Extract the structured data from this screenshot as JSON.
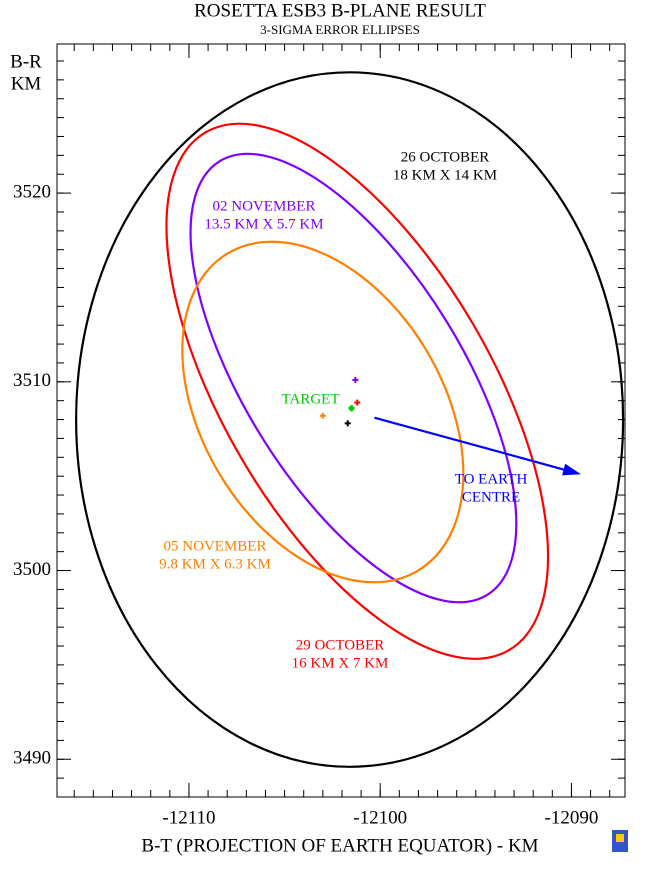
{
  "chart_data": {
    "type": "ellipse-plot",
    "title": "ROSETTA ESB3 B-PLANE RESULT",
    "subtitle": "3-SIGMA ERROR ELLIPSES",
    "ylabel": [
      "B-R",
      "KM"
    ],
    "xlabel": "B-T (PROJECTION OF EARTH EQUATOR) - KM",
    "xlim": [
      -12116.9,
      -12087.2
    ],
    "xticks": [
      -12110,
      -12100,
      -12090
    ],
    "ylim": [
      3488.0,
      3527.9
    ],
    "yticks": [
      3490,
      3500,
      3510,
      3520
    ],
    "minor_tick_step": 1,
    "ellipses": [
      {
        "name": [
          "26 OCTOBER",
          "18 KM X 14 KM"
        ],
        "color": "#000000",
        "cx": -12101.6,
        "cy": 3508.0,
        "rx": 14.3,
        "ry": 18.4,
        "angle": 0
      },
      {
        "name": [
          "29 OCTOBER",
          "16 KM X 7 KM"
        ],
        "color": "#ff0000",
        "cx": -12101.2,
        "cy": 3509.5,
        "rx": 7.0,
        "ry": 15.9,
        "angle": -30.4
      },
      {
        "name": [
          "02 NOVEMBER",
          "13.5 KM X 5.7 KM"
        ],
        "color": "#8000ff",
        "cx": -12101.4,
        "cy": 3510.2,
        "rx": 5.7,
        "ry": 13.5,
        "angle": -31.7
      },
      {
        "name": [
          "05 NOVEMBER",
          "9.8 KM X 6.3 KM"
        ],
        "color": "#ff8000",
        "cx": -12103.0,
        "cy": 3508.4,
        "rx": 6.3,
        "ry": 9.8,
        "angle": -31
      }
    ],
    "markers": [
      {
        "color": "#8000ff",
        "x": -12101.3,
        "y": 3510.1
      },
      {
        "color": "#ff0000",
        "x": -12101.2,
        "y": 3508.9
      },
      {
        "color": "#00cc00",
        "x": -12101.5,
        "y": 3508.6,
        "name": "TARGET"
      },
      {
        "color": "#000000",
        "x": -12101.7,
        "y": 3507.8
      },
      {
        "color": "#ff8000",
        "x": -12103.0,
        "y": 3508.2
      }
    ],
    "arrow": {
      "name": [
        "TO EARTH",
        "CENTRE"
      ],
      "color": "#0000ff",
      "x": [
        -12100.3,
        -12089.5
      ],
      "y": [
        3508.1,
        3505.1
      ]
    }
  }
}
